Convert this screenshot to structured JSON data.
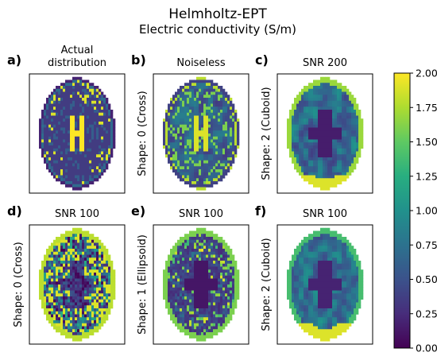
{
  "figure": {
    "title": "Helmholtz-EPT",
    "subtitle": "Electric conductivity (S/m)"
  },
  "panels": [
    {
      "id": "a",
      "label": "a)",
      "title_lines": [
        "Actual",
        "distribution"
      ],
      "ylabel": "",
      "style": "actual"
    },
    {
      "id": "b",
      "label": "b)",
      "title_lines": [
        "Noiseless"
      ],
      "ylabel": "Shape: 0 (Cross)",
      "style": "noiseless"
    },
    {
      "id": "c",
      "label": "c)",
      "title_lines": [
        "SNR 200"
      ],
      "ylabel": "Shape: 2 (Cuboid)",
      "style": "smooth"
    },
    {
      "id": "d",
      "label": "d)",
      "title_lines": [
        "SNR 100"
      ],
      "ylabel": "Shape: 0 (Cross)",
      "style": "noisy"
    },
    {
      "id": "e",
      "label": "e)",
      "title_lines": [
        "SNR 100"
      ],
      "ylabel": "Shape: 1 (Ellipsoid)",
      "style": "medium"
    },
    {
      "id": "f",
      "label": "f)",
      "title_lines": [
        "SNR 100"
      ],
      "ylabel": "Shape: 2 (Cuboid)",
      "style": "blurry"
    }
  ],
  "colorbar": {
    "colormap": "viridis",
    "ticks": [
      "0.00",
      "0.25",
      "0.50",
      "0.75",
      "1.00",
      "1.25",
      "1.50",
      "1.75",
      "2.00"
    ],
    "vmin": 0,
    "vmax": 2
  },
  "chart_data": {
    "type": "heatmap",
    "title": "Helmholtz-EPT",
    "subtitle": "Electric conductivity (S/m)",
    "colorbar_range": [
      0,
      2
    ],
    "colormap": "viridis",
    "panels": [
      {
        "label": "a)",
        "title": "Actual distribution"
      },
      {
        "label": "b)",
        "title": "Noiseless",
        "ylabel": "Shape: 0 (Cross)"
      },
      {
        "label": "c)",
        "title": "SNR 200",
        "ylabel": "Shape: 2 (Cuboid)"
      },
      {
        "label": "d)",
        "title": "SNR 100",
        "ylabel": "Shape: 0 (Cross)"
      },
      {
        "label": "e)",
        "title": "SNR 100",
        "ylabel": "Shape: 1 (Ellipsoid)"
      },
      {
        "label": "f)",
        "title": "SNR 100",
        "ylabel": "Shape: 2 (Cuboid)"
      }
    ]
  }
}
